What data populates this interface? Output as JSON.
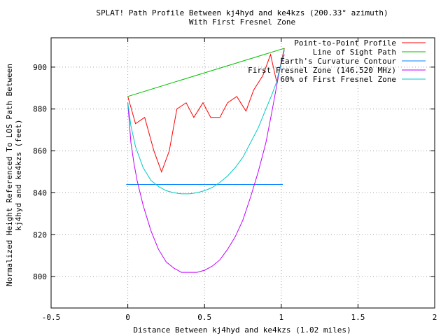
{
  "chart_data": {
    "type": "line",
    "title": "SPLAT! Path Profile Between kj4hyd and ke4kzs (200.33° azimuth)",
    "subtitle": "With First Fresnel Zone",
    "xlabel": "Distance Between kj4hyd and ke4kzs (1.02 miles)",
    "ylabel": "Normalized Height Referenced To LOS Path Between kj4hyd and ke4kzs (feet)",
    "ylabel_line1": "Normalized Height Referenced To LOS Path Between",
    "ylabel_line2": "kj4hyd and ke4kzs (feet)",
    "xlim": [
      -0.5,
      2
    ],
    "ylim": [
      785,
      914
    ],
    "x_ticks": [
      -0.5,
      0,
      0.5,
      1,
      1.5,
      2
    ],
    "x_tick_labels": [
      "-0.5",
      "0",
      "0.5",
      "1",
      "1.5",
      "2"
    ],
    "y_ticks": [
      800,
      820,
      840,
      860,
      880,
      900
    ],
    "y_tick_labels": [
      "800",
      "820",
      "840",
      "860",
      "880",
      "900"
    ],
    "grid": true,
    "legend_position": "top-right",
    "series": [
      {
        "name": "Point-to-Point Profile",
        "color": "#ff0000",
        "x": [
          0,
          0.05,
          0.11,
          0.17,
          0.22,
          0.27,
          0.32,
          0.38,
          0.43,
          0.49,
          0.54,
          0.6,
          0.65,
          0.71,
          0.77,
          0.82,
          0.88,
          0.93,
          0.97,
          1.02
        ],
        "y": [
          886,
          873,
          876,
          860,
          850,
          860,
          880,
          883,
          876,
          883,
          876,
          876,
          883,
          886,
          879,
          889,
          896,
          906,
          893,
          909
        ]
      },
      {
        "name": "Line of Sight Path",
        "color": "#00c000",
        "x": [
          0,
          1.02
        ],
        "y": [
          886,
          909
        ]
      },
      {
        "name": "Earth's Curvature Contour",
        "color": "#0080ff",
        "x": [
          -0.01,
          1.01
        ],
        "y": [
          844,
          844
        ]
      },
      {
        "name": "First Fresnel Zone (146.520 MHz)",
        "color": "#c000ff",
        "x": [
          0,
          0.02,
          0.04,
          0.06,
          0.1,
          0.15,
          0.2,
          0.25,
          0.3,
          0.35,
          0.4,
          0.45,
          0.5,
          0.55,
          0.6,
          0.65,
          0.7,
          0.75,
          0.8,
          0.85,
          0.9,
          0.94,
          0.98,
          1.0,
          1.02
        ],
        "y": [
          883,
          864,
          854,
          846,
          834,
          822,
          813,
          807,
          804,
          802,
          802,
          802,
          803,
          805,
          808,
          813,
          819,
          827,
          838,
          850,
          864,
          879,
          895,
          902,
          906
        ]
      },
      {
        "name": "60% of First Fresnel Zone",
        "color": "#00c8c8",
        "x": [
          0,
          0.02,
          0.05,
          0.1,
          0.15,
          0.2,
          0.25,
          0.3,
          0.35,
          0.4,
          0.45,
          0.5,
          0.55,
          0.6,
          0.65,
          0.7,
          0.75,
          0.8,
          0.85,
          0.9,
          0.94,
          0.97,
          1.0,
          1.02
        ],
        "y": [
          883,
          872,
          862,
          852,
          846,
          843,
          841,
          840,
          839.5,
          839.5,
          840,
          841,
          842.5,
          845,
          848,
          852,
          857,
          864,
          871,
          880,
          887,
          893,
          902,
          908
        ]
      }
    ]
  }
}
